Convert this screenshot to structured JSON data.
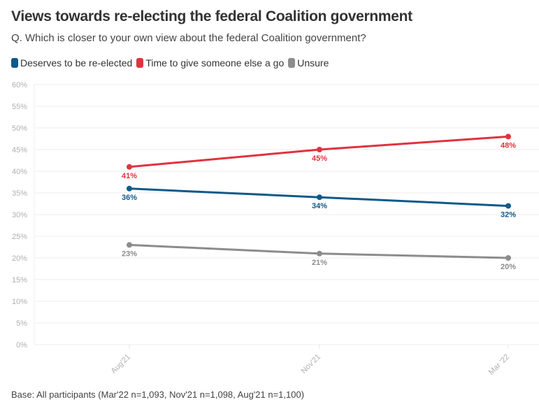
{
  "chart_data": {
    "type": "line",
    "title": "Views towards re-electing the federal Coalition government",
    "subtitle": "Q. Which is closer to your own view about the federal Coalition government?",
    "categories": [
      "Aug'21",
      "Nov'21",
      "Mar '22"
    ],
    "series": [
      {
        "name": "Deserves to be re-elected",
        "color": "#0e5a8a",
        "values": [
          36,
          34,
          32
        ],
        "labels": [
          "36%",
          "34%",
          "32%"
        ]
      },
      {
        "name": "Time to give someone else a go",
        "color": "#e03340",
        "values": [
          41,
          45,
          48
        ],
        "labels": [
          "41%",
          "45%",
          "48%"
        ]
      },
      {
        "name": "Unsure",
        "color": "#8c8c8c",
        "values": [
          23,
          21,
          20
        ],
        "labels": [
          "23%",
          "21%",
          "20%"
        ]
      }
    ],
    "xlabel": "",
    "ylabel": "",
    "ylim": [
      0,
      60
    ],
    "yticks": [
      0,
      5,
      10,
      15,
      20,
      25,
      30,
      35,
      40,
      45,
      50,
      55,
      60
    ],
    "ytick_suffix": "%",
    "grid": true,
    "legend_position": "top-left",
    "footer": "Base: All participants (Mar'22 n=1,093, Nov'21 n=1,098, Aug'21 n=1,100)"
  }
}
